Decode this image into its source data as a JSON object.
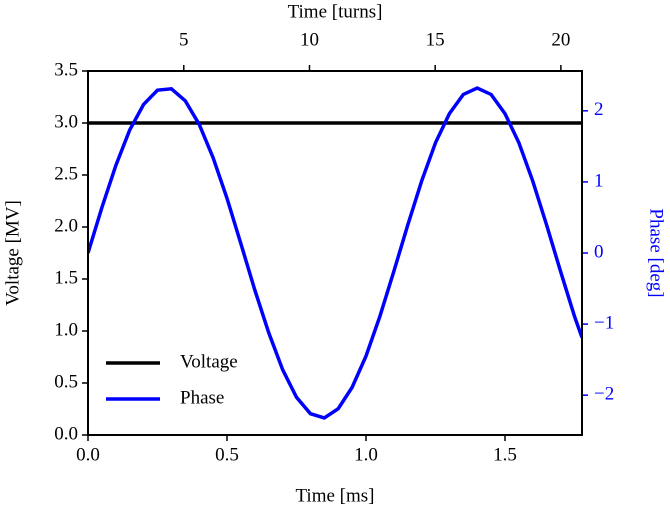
{
  "chart_data": {
    "type": "line",
    "xlabel": "Time [ms]",
    "ylabel": "Voltage [MV]",
    "y2label": "Phase [deg]",
    "x2label": "Time [turns]",
    "xlim": [
      0,
      1.777
    ],
    "xticks": [
      {
        "value": 0,
        "label": "0.0"
      },
      0.5,
      {
        "value": 1,
        "label": "1.0"
      },
      1.5
    ],
    "x2lim": [
      1.19,
      20.84
    ],
    "x2ticks": [
      5,
      10,
      15,
      20
    ],
    "ylim": [
      0,
      3.5
    ],
    "yticks": [
      {
        "value": 0,
        "label": "0.0"
      },
      0.5,
      {
        "value": 1,
        "label": "1.0"
      },
      1.5,
      {
        "value": 2,
        "label": "2.0"
      },
      2.5,
      {
        "value": 3,
        "label": "3.0"
      },
      3.5
    ],
    "y2lim": [
      -2.56,
      2.56
    ],
    "y2ticks": [
      {
        "value": -2,
        "label": "−2"
      },
      {
        "value": -1,
        "label": "−1"
      },
      0,
      1,
      2
    ],
    "y2color": "#0000ff",
    "legend": "lower left",
    "series": [
      {
        "name": "Voltage",
        "color": "#000000",
        "x": [
          0,
          1.777
        ],
        "values": [
          3.0,
          3.0
        ]
      },
      {
        "name": "Phase",
        "color": "#0000ff",
        "axis": "y2",
        "x": [
          0,
          0.05,
          0.1,
          0.15,
          0.2,
          0.25,
          0.3,
          0.35,
          0.4,
          0.45,
          0.5,
          0.55,
          0.6,
          0.65,
          0.7,
          0.75,
          0.8,
          0.85,
          0.9,
          0.95,
          1.0,
          1.05,
          1.1,
          1.15,
          1.2,
          1.25,
          1.3,
          1.35,
          1.4,
          1.45,
          1.5,
          1.55,
          1.6,
          1.65,
          1.7,
          1.75,
          1.777
        ],
        "values": [
          0,
          0.64,
          1.23,
          1.73,
          2.09,
          2.29,
          2.31,
          2.14,
          1.81,
          1.34,
          0.77,
          0.13,
          -0.52,
          -1.12,
          -1.64,
          -2.03,
          -2.26,
          -2.32,
          -2.19,
          -1.89,
          -1.45,
          -0.89,
          -0.26,
          0.39,
          1.01,
          1.55,
          1.96,
          2.23,
          2.32,
          2.23,
          1.96,
          1.55,
          1.01,
          0.39,
          -0.26,
          -0.89,
          -1.19
        ]
      }
    ]
  }
}
